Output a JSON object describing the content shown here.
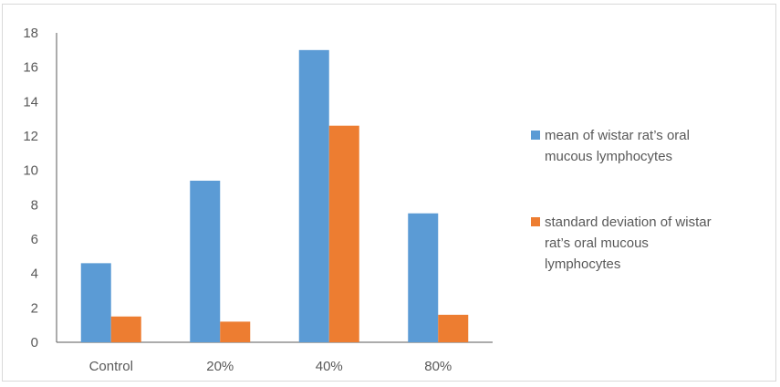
{
  "chart_data": {
    "type": "bar",
    "categories": [
      "Control",
      "20%",
      "40%",
      "80%"
    ],
    "series": [
      {
        "name": "mean of wistar rat's oral mucous lymphocytes",
        "legend_lines": [
          "mean of wistar rat’s oral",
          "mucous lymphocytes"
        ],
        "color": "#5b9bd5",
        "values": [
          4.6,
          9.4,
          17.0,
          7.5
        ]
      },
      {
        "name": "standard deviation of wistar rat's oral mucous lymphocytes",
        "legend_lines": [
          "standard deviation of wistar",
          "rat’s oral mucous",
          "lymphocytes"
        ],
        "color": "#ed7d31",
        "values": [
          1.5,
          1.2,
          12.6,
          1.6
        ]
      }
    ],
    "yticks": [
      "0",
      "2",
      "4",
      "6",
      "8",
      "10",
      "12",
      "14",
      "16",
      "18"
    ],
    "ylim": [
      0,
      18
    ],
    "grid": false,
    "legend_position": "right"
  }
}
